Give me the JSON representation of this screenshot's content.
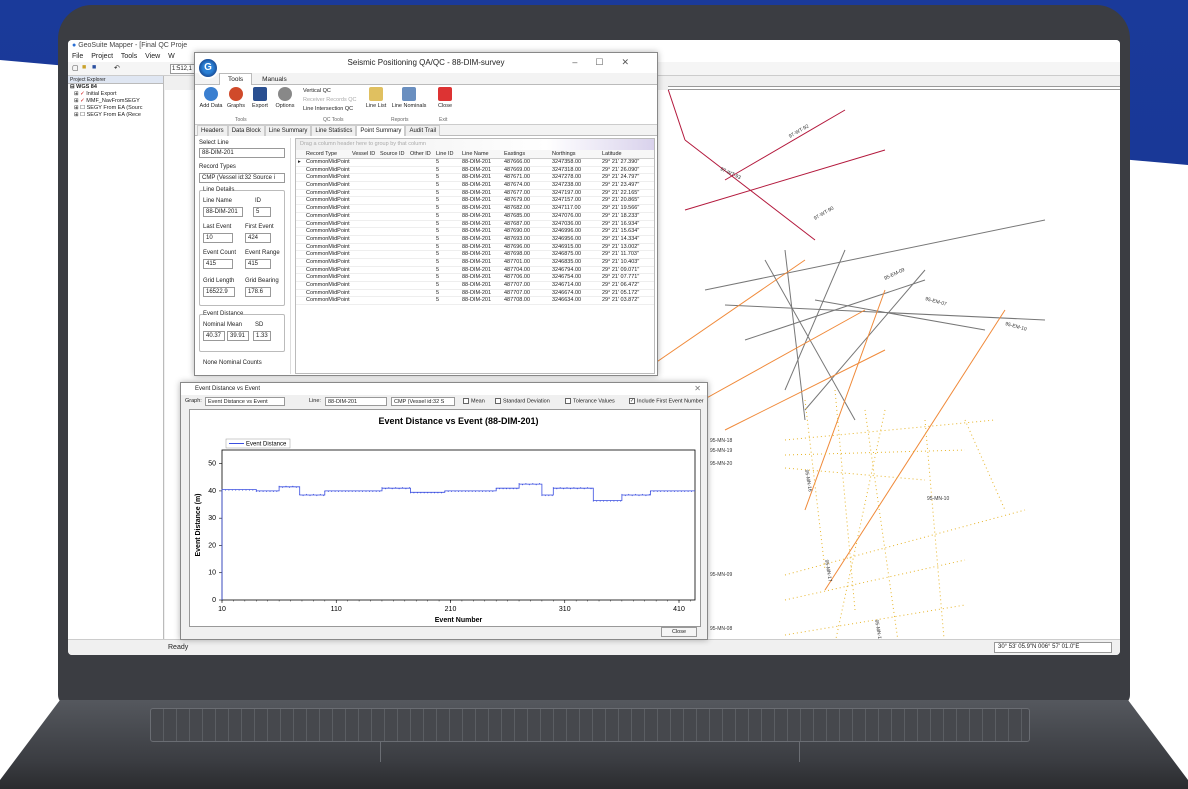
{
  "main": {
    "title": "GeoSuite Mapper - [Final QC Proje",
    "menu": [
      "File",
      "Project",
      "Tools",
      "View",
      "W"
    ],
    "scale": "1:512,1",
    "status": "Ready",
    "coords": "30° 53' 05.9\"N 006° 57' 01.0\"E"
  },
  "explorer": {
    "header": "Project Explorer",
    "items": [
      "WGS 84",
      "Initial Export",
      "MMF_NavFromSEGY",
      "SEGY From EA (Sourc",
      "SEGY From EA (Rece"
    ]
  },
  "qc": {
    "title": "Seismic Positioning QA/QC - 88-DIM-survey",
    "ribbon_tabs": [
      "Tools",
      "Manuals"
    ],
    "buttons": {
      "add_data": "Add Data",
      "graphs": "Graphs",
      "export": "Export",
      "options": "Options",
      "line_list": "Line List",
      "line_nominals": "Line Nominals",
      "close": "Close"
    },
    "qc_tools": [
      "Vertical QC",
      "Receiver Records QC",
      "Line Intersection QC"
    ],
    "groups": [
      "Tools",
      "QC Tools",
      "Reports",
      "Exit"
    ],
    "tabs": [
      "Headers",
      "Data Block",
      "Line Summary",
      "Line Statistics",
      "Point Summary",
      "Audit Trail"
    ],
    "select_line_label": "Select Line",
    "select_line": "88-DIM-201",
    "record_types_label": "Record Types",
    "record_type": "CMP (Vessel id:32 Source i",
    "line_details": {
      "title": "Line Details",
      "line_name_label": "Line Name",
      "line_name": "88-DIM-201",
      "id_label": "ID",
      "id": "5",
      "last_event_label": "Last Event",
      "last_event": "10",
      "first_event_label": "First Event",
      "first_event": "424",
      "event_count_label": "Event Count",
      "event_count": "415",
      "event_range_label": "Event Range",
      "event_range": "415",
      "grid_length_label": "Grid Length",
      "grid_length": "16522.9",
      "grid_bearing_label": "Grid Bearing",
      "grid_bearing": "178.6"
    },
    "event_distance": {
      "title": "Event Distance",
      "nominal_label": "Nominal",
      "mean_label": "Mean",
      "sd_label": "SD",
      "nominal": "40.37",
      "mean": "39.91",
      "sd": "1.33"
    },
    "none_nominal": "None Nominal Counts",
    "grid": {
      "hint": "Drag a column header here to group by that column",
      "columns": [
        "Record Type",
        "Vessel ID",
        "Source ID",
        "Other ID",
        "Line ID",
        "Line Name",
        "Eastings",
        "Northings",
        "Latitude"
      ],
      "rows": [
        [
          "CommonMidPoint",
          "",
          "",
          "",
          "5",
          "88-DIM-201",
          "487666.00",
          "3247358.00",
          "29° 21' 27.390\""
        ],
        [
          "CommonMidPoint",
          "",
          "",
          "",
          "5",
          "88-DIM-201",
          "487669.00",
          "3247318.00",
          "29° 21' 26.090\""
        ],
        [
          "CommonMidPoint",
          "",
          "",
          "",
          "5",
          "88-DIM-201",
          "487671.00",
          "3247278.00",
          "29° 21' 24.797\""
        ],
        [
          "CommonMidPoint",
          "",
          "",
          "",
          "5",
          "88-DIM-201",
          "487674.00",
          "3247238.00",
          "29° 21' 23.497\""
        ],
        [
          "CommonMidPoint",
          "",
          "",
          "",
          "5",
          "88-DIM-201",
          "487677.00",
          "3247197.00",
          "29° 21' 22.165\""
        ],
        [
          "CommonMidPoint",
          "",
          "",
          "",
          "5",
          "88-DIM-201",
          "487679.00",
          "3247157.00",
          "29° 21' 20.865\""
        ],
        [
          "CommonMidPoint",
          "",
          "",
          "",
          "5",
          "88-DIM-201",
          "487682.00",
          "3247117.00",
          "29° 21' 19.566\""
        ],
        [
          "CommonMidPoint",
          "",
          "",
          "",
          "5",
          "88-DIM-201",
          "487685.00",
          "3247076.00",
          "29° 21' 18.233\""
        ],
        [
          "CommonMidPoint",
          "",
          "",
          "",
          "5",
          "88-DIM-201",
          "487687.00",
          "3247036.00",
          "29° 21' 16.934\""
        ],
        [
          "CommonMidPoint",
          "",
          "",
          "",
          "5",
          "88-DIM-201",
          "487690.00",
          "3246996.00",
          "29° 21' 15.634\""
        ],
        [
          "CommonMidPoint",
          "",
          "",
          "",
          "5",
          "88-DIM-201",
          "487693.00",
          "3246956.00",
          "29° 21' 14.334\""
        ],
        [
          "CommonMidPoint",
          "",
          "",
          "",
          "5",
          "88-DIM-201",
          "487696.00",
          "3246915.00",
          "29° 21' 13.002\""
        ],
        [
          "CommonMidPoint",
          "",
          "",
          "",
          "5",
          "88-DIM-201",
          "487698.00",
          "3246875.00",
          "29° 21' 11.703\""
        ],
        [
          "CommonMidPoint",
          "",
          "",
          "",
          "5",
          "88-DIM-201",
          "487701.00",
          "3246835.00",
          "29° 21' 10.403\""
        ],
        [
          "CommonMidPoint",
          "",
          "",
          "",
          "5",
          "88-DIM-201",
          "487704.00",
          "3246794.00",
          "29° 21' 09.071\""
        ],
        [
          "CommonMidPoint",
          "",
          "",
          "",
          "5",
          "88-DIM-201",
          "487706.00",
          "3246754.00",
          "29° 21' 07.771\""
        ],
        [
          "CommonMidPoint",
          "",
          "",
          "",
          "5",
          "88-DIM-201",
          "487707.00",
          "3246714.00",
          "29° 21' 06.472\""
        ],
        [
          "CommonMidPoint",
          "",
          "",
          "",
          "5",
          "88-DIM-201",
          "487707.00",
          "3246674.00",
          "29° 21' 05.172\""
        ],
        [
          "CommonMidPoint",
          "",
          "",
          "",
          "5",
          "88-DIM-201",
          "487708.00",
          "3246634.00",
          "29° 21' 03.872\""
        ]
      ]
    }
  },
  "graph_window": {
    "title": "Event Distance vs Event",
    "graph_label": "Graph:",
    "graph_value": "Event Distance vs Event",
    "line_label": "Line:",
    "line_value": "88-DIM-201",
    "record_value": "CMP (Vessel id:32 S",
    "checks": {
      "mean": "Mean",
      "sd": "Standard Deviation",
      "tol": "Tolerance Values",
      "first": "Include First Event Number"
    },
    "close": "Close"
  },
  "chart_data": {
    "type": "line",
    "title": "Event Distance vs Event (88-DIM-201)",
    "xlabel": "Event Number",
    "ylabel": "Event Distance (m)",
    "xlim": [
      10,
      424
    ],
    "ylim": [
      0,
      55
    ],
    "xticks": [
      10,
      110,
      210,
      310,
      410
    ],
    "yticks": [
      0,
      10,
      20,
      30,
      40,
      50
    ],
    "legend": "top-left",
    "series": [
      {
        "name": "Event Distance",
        "color": "#3b4fe0",
        "segments": [
          {
            "x": [
              10,
              40
            ],
            "y": 40.5
          },
          {
            "x": [
              40,
              60
            ],
            "y": 40.0
          },
          {
            "x": [
              60,
              78
            ],
            "y": 41.5
          },
          {
            "x": [
              78,
              100
            ],
            "y": 38.5
          },
          {
            "x": [
              100,
              150
            ],
            "y": 40.0
          },
          {
            "x": [
              150,
              175
            ],
            "y": 41.0
          },
          {
            "x": [
              175,
              205
            ],
            "y": 39.5
          },
          {
            "x": [
              205,
              250
            ],
            "y": 40.0
          },
          {
            "x": [
              250,
              270
            ],
            "y": 41.0
          },
          {
            "x": [
              270,
              290
            ],
            "y": 42.5
          },
          {
            "x": [
              290,
              300
            ],
            "y": 38.5
          },
          {
            "x": [
              300,
              335
            ],
            "y": 41.0
          },
          {
            "x": [
              335,
              360
            ],
            "y": 36.5
          },
          {
            "x": [
              360,
              385
            ],
            "y": 38.5
          },
          {
            "x": [
              385,
              424
            ],
            "y": 40.0
          }
        ]
      }
    ]
  },
  "map_labels": [
    "97-WT-93",
    "97-WT-92",
    "97-WT-90",
    "95-EM-09",
    "95-EM-07",
    "95-EM-10",
    "95-MN-18",
    "95-MN-19",
    "95-MN-20",
    "95-MN-10",
    "95-MN-09",
    "95-MN-08",
    "95-MN-15",
    "95-MN-16",
    "95-MN-17"
  ]
}
